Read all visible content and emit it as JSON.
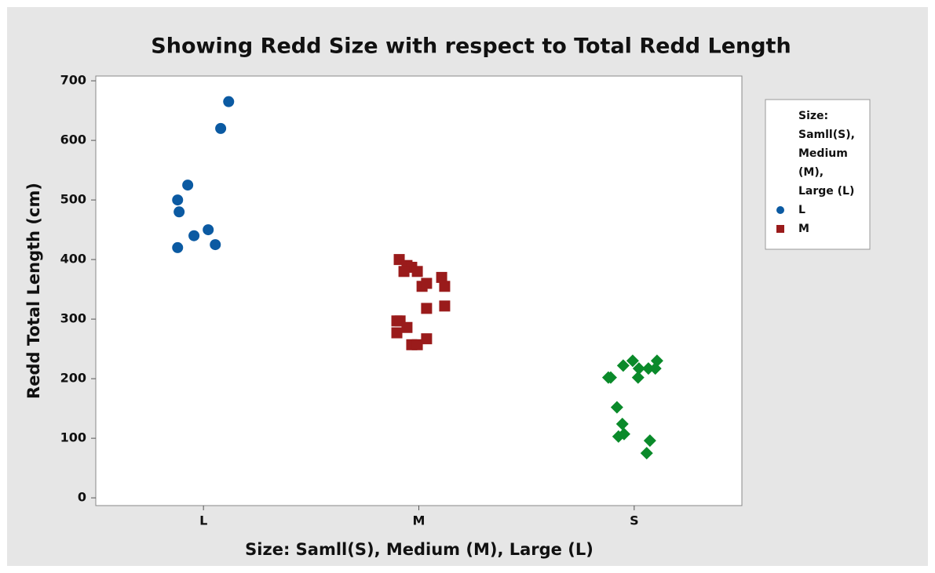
{
  "chart_data": {
    "type": "scatter",
    "title": "Showing Redd Size with respect to Total Redd Length",
    "x_label": "Size: Samll(S), Medium (M), Large (L)",
    "y_label": "Redd Total Length (cm)",
    "legend_title": [
      "Size:",
      "Samll(S),",
      "Medium",
      "(M),",
      "Large (L)"
    ],
    "legend": "right",
    "xlim": [
      0.5,
      3.5
    ],
    "xticks": [
      {
        "value": 1,
        "label": "L"
      },
      {
        "value": 2,
        "label": "M"
      },
      {
        "value": 3,
        "label": "S"
      }
    ],
    "ylim": [
      -13,
      708
    ],
    "yticks": [
      0,
      100,
      200,
      300,
      400,
      500,
      600,
      700
    ],
    "grid": false,
    "series": [
      {
        "name": "L",
        "color": "#0b5aa2",
        "marker": "circle",
        "x": [
          1.117,
          1.08,
          0.927,
          0.88,
          0.887,
          0.956,
          1.022,
          0.88,
          1.055
        ],
        "values": [
          665,
          620,
          525,
          500,
          480,
          440,
          450,
          420,
          425
        ]
      },
      {
        "name": "M",
        "color": "#9a1b1b",
        "marker": "square",
        "x": [
          1.909,
          1.945,
          1.967,
          1.931,
          1.993,
          2.015,
          2.036,
          2.106,
          2.12,
          2.036,
          2.12,
          1.898,
          1.913,
          1.945,
          1.898,
          1.967,
          1.993,
          2.036
        ],
        "values": [
          400,
          390,
          387,
          380,
          380,
          355,
          360,
          370,
          355,
          318,
          322,
          297,
          297,
          286,
          277,
          257,
          257,
          267
        ]
      },
      {
        "color": "#0a8a2a",
        "marker": "diamond",
        "x": [
          2.88,
          2.891,
          2.949,
          2.993,
          3.022,
          3.018,
          3.066,
          3.106,
          3.098,
          2.92,
          2.945,
          2.927,
          2.953,
          3.073,
          3.058
        ],
        "values": [
          202,
          202,
          222,
          230,
          217,
          202,
          217,
          230,
          217,
          152,
          124,
          103,
          107,
          96,
          75
        ]
      }
    ]
  }
}
